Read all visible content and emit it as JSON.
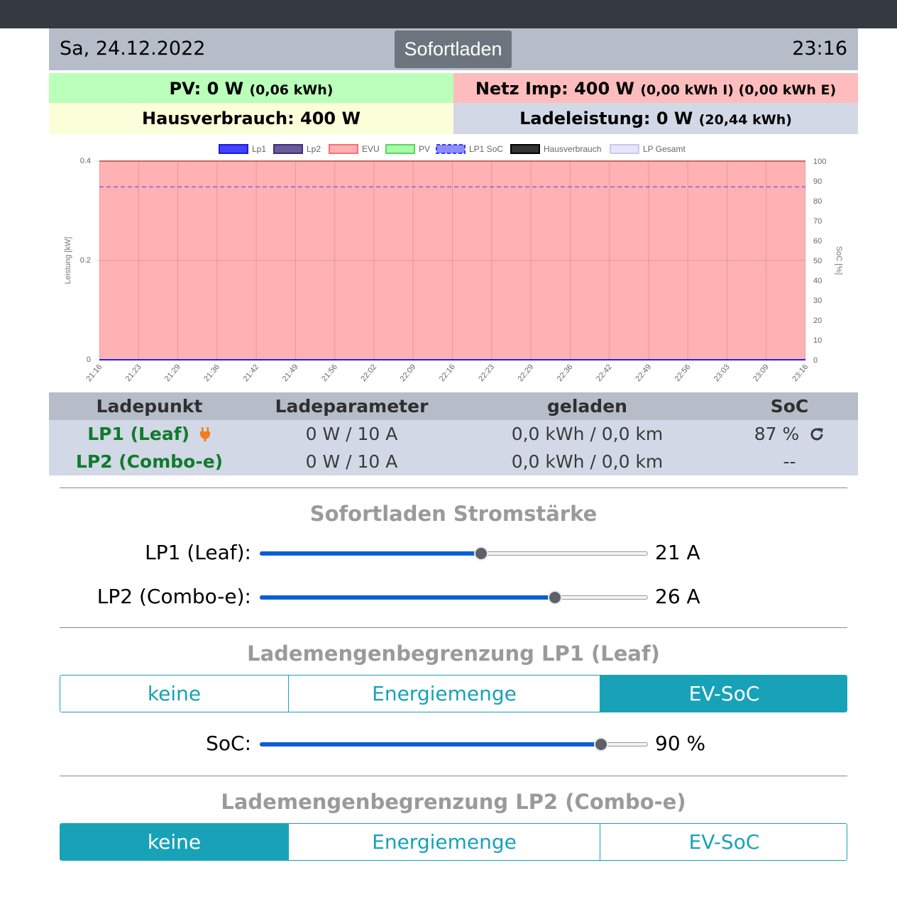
{
  "header": {
    "date": "Sa, 24.12.2022",
    "mode": "Sofortladen",
    "time": "23:16"
  },
  "power": {
    "pv_label": "PV: 0 W",
    "pv_energy": "(0,06 kWh)",
    "grid_label": "Netz Imp: 400 W",
    "grid_energy": "(0,00 kWh I) (0,00 kWh E)",
    "house_label": "Hausverbrauch: 400 W",
    "charge_label": "Ladeleistung: 0 W",
    "charge_energy": "(20,44 kWh)"
  },
  "colors": {
    "pv_bg": "#baffba",
    "grid_bg": "#ffbcbc",
    "house_bg": "#fcfdd9",
    "charge_bg": "#d2d8e6",
    "accent": "#17a2b8",
    "slider": "#0b5ed7"
  },
  "chart_data": {
    "type": "line",
    "x": [
      "21:16",
      "21:23",
      "21:29",
      "21:36",
      "21:42",
      "21:49",
      "21:56",
      "22:02",
      "22:09",
      "22:16",
      "22:23",
      "22:29",
      "22:36",
      "22:42",
      "22:49",
      "22:56",
      "23:03",
      "23:09",
      "23:16"
    ],
    "ylabel": "Leistung [kW]",
    "y2label": "SoC [%]",
    "ylim": [
      0,
      0.4
    ],
    "y2lim": [
      0,
      100
    ],
    "yticks": [
      "0.4",
      "0.2",
      "0"
    ],
    "y2ticks": [
      "100",
      "90",
      "80",
      "70",
      "60",
      "50",
      "40",
      "30",
      "20",
      "10",
      "0"
    ],
    "legend": [
      "Lp1",
      "Lp2",
      "EVU",
      "PV",
      "LP1 SoC",
      "Hausverbrauch",
      "LP Gesamt"
    ],
    "legend_position": "top",
    "grid": true,
    "series": [
      {
        "name": "Lp1",
        "values": [
          0,
          0,
          0,
          0,
          0,
          0,
          0,
          0,
          0,
          0,
          0,
          0,
          0,
          0,
          0,
          0,
          0,
          0,
          0
        ]
      },
      {
        "name": "Lp2",
        "values": [
          0,
          0,
          0,
          0,
          0,
          0,
          0,
          0,
          0,
          0,
          0,
          0,
          0,
          0,
          0,
          0,
          0,
          0,
          0
        ]
      },
      {
        "name": "EVU",
        "values": [
          0.4,
          0.4,
          0.4,
          0.4,
          0.4,
          0.4,
          0.4,
          0.4,
          0.4,
          0.4,
          0.4,
          0.4,
          0.4,
          0.4,
          0.4,
          0.4,
          0.4,
          0.4,
          0.4
        ]
      },
      {
        "name": "PV",
        "values": [
          0,
          0,
          0,
          0,
          0,
          0,
          0,
          0,
          0,
          0,
          0,
          0,
          0,
          0,
          0,
          0,
          0,
          0,
          0
        ]
      },
      {
        "name": "LP1 SoC",
        "values": [
          87,
          87,
          87,
          87,
          87,
          87,
          87,
          87,
          87,
          87,
          87,
          87,
          87,
          87,
          87,
          87,
          87,
          87,
          87
        ]
      },
      {
        "name": "Hausverbrauch",
        "values": [
          0.4,
          0.4,
          0.4,
          0.4,
          0.4,
          0.4,
          0.4,
          0.4,
          0.4,
          0.4,
          0.4,
          0.4,
          0.4,
          0.4,
          0.4,
          0.4,
          0.4,
          0.4,
          0.4
        ]
      },
      {
        "name": "LP Gesamt",
        "values": [
          0,
          0,
          0,
          0,
          0,
          0,
          0,
          0,
          0,
          0,
          0,
          0,
          0,
          0,
          0,
          0,
          0,
          0,
          0
        ]
      }
    ]
  },
  "table": {
    "headers": [
      "Ladepunkt",
      "Ladeparameter",
      "geladen",
      "SoC"
    ],
    "rows": [
      {
        "name": "LP1 (Leaf)",
        "param": "0 W / 10 A",
        "charged": "0,0 kWh / 0,0 km",
        "soc": "87 %"
      },
      {
        "name": "LP2 (Combo-e)",
        "param": "0 W / 10 A",
        "charged": "0,0 kWh / 0,0 km",
        "soc": "--"
      }
    ]
  },
  "sofort": {
    "title": "Sofortladen Stromstärke",
    "lp1_label": "LP1 (Leaf):",
    "lp1_value": "21 A",
    "lp1_level": 0.57,
    "lp2_label": "LP2 (Combo-e):",
    "lp2_value": "26 A",
    "lp2_level": 0.76
  },
  "limit_lp1": {
    "title": "Lademengenbegrenzung LP1 (Leaf)",
    "options": [
      "keine",
      "Energiemenge",
      "EV-SoC"
    ],
    "selected": "EV-SoC",
    "soc_label": "SoC:",
    "soc_value": "90 %",
    "soc_level": 0.88
  },
  "limit_lp2": {
    "title": "Lademengenbegrenzung LP2 (Combo-e)",
    "options": [
      "keine",
      "Energiemenge",
      "EV-SoC"
    ],
    "selected": "keine"
  }
}
